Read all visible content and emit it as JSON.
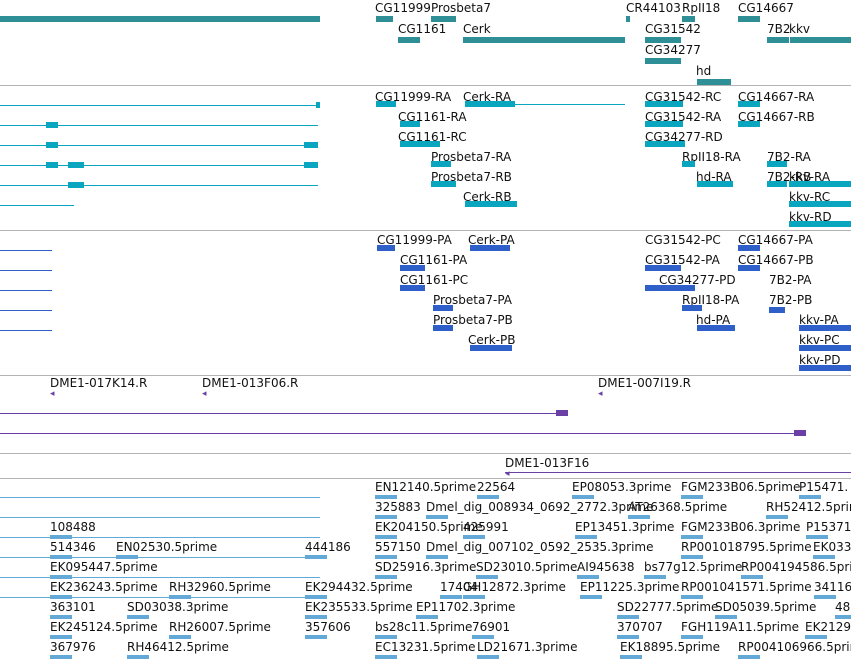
{
  "colors": {
    "gene": "#2e8f97",
    "transcript": "#0aa6bf",
    "protein": "#2f5fc9",
    "clone": "#6b40a6",
    "est": "#63a9d8",
    "separator": "#b4b4b4",
    "text": "#111111"
  },
  "tracks": {
    "genes": [
      {
        "label": "CG11999",
        "dir": "left"
      },
      {
        "label": "Prosbeta7",
        "dir": "left"
      },
      {
        "label": "CG1161",
        "dir": "none"
      },
      {
        "label": "Cerk",
        "dir": "none"
      },
      {
        "label": "CR44103",
        "dir": "none"
      },
      {
        "label": "RpII18",
        "dir": "right"
      },
      {
        "label": "CG31542",
        "dir": "none"
      },
      {
        "label": "CG34277",
        "dir": "none"
      },
      {
        "label": "hd",
        "dir": "none"
      },
      {
        "label": "CG14667",
        "dir": "right"
      },
      {
        "label": "7B2",
        "dir": "none"
      },
      {
        "label": "kkv",
        "dir": "none"
      }
    ],
    "transcripts": [
      {
        "label": "CG11999-RA"
      },
      {
        "label": "Cerk-RA"
      },
      {
        "label": "CG1161-RA"
      },
      {
        "label": "CG1161-RC"
      },
      {
        "label": "Prosbeta7-RA"
      },
      {
        "label": "Prosbeta7-RB"
      },
      {
        "label": "Cerk-RB"
      },
      {
        "label": "CG31542-RC"
      },
      {
        "label": "CG31542-RA"
      },
      {
        "label": "CG34277-RD"
      },
      {
        "label": "RpII18-RA"
      },
      {
        "label": "hd-RA"
      },
      {
        "label": "CG14667-RA"
      },
      {
        "label": "CG14667-RB"
      },
      {
        "label": "7B2-RA"
      },
      {
        "label": "7B2-RB"
      },
      {
        "label": "kkv-RA"
      },
      {
        "label": "kkv-RC"
      },
      {
        "label": "kkv-RD"
      }
    ],
    "proteins": [
      {
        "label": "CG11999-PA"
      },
      {
        "label": "Cerk-PA"
      },
      {
        "label": "CG1161-PA"
      },
      {
        "label": "CG1161-PC"
      },
      {
        "label": "Prosbeta7-PA"
      },
      {
        "label": "Prosbeta7-PB"
      },
      {
        "label": "Cerk-PB"
      },
      {
        "label": "CG31542-PC"
      },
      {
        "label": "CG31542-PA"
      },
      {
        "label": "CG34277-PD"
      },
      {
        "label": "RpII18-PA"
      },
      {
        "label": "hd-PA"
      },
      {
        "label": "CG14667-PA"
      },
      {
        "label": "CG14667-PB"
      },
      {
        "label": "7B2-PA"
      },
      {
        "label": "7B2-PB"
      },
      {
        "label": "kkv-PA"
      },
      {
        "label": "kkv-PC"
      },
      {
        "label": "kkv-PD"
      }
    ],
    "clones": [
      {
        "label": "DME1-017K14.R"
      },
      {
        "label": "DME1-013F06.R"
      },
      {
        "label": "DME1-007I19.R"
      },
      {
        "label": "DME1-013F16"
      }
    ],
    "ests": [
      {
        "label": "EN12140.5prime"
      },
      {
        "label": "22564"
      },
      {
        "label": "EP08053.3prime"
      },
      {
        "label": "FGM233B06.5prime"
      },
      {
        "label": "P15471."
      },
      {
        "label": "325883"
      },
      {
        "label": "Dmel_dig_008934_0692_2772.3prime"
      },
      {
        "label": "AT26368.5prime"
      },
      {
        "label": "RH52412.5prime"
      },
      {
        "label": "108488"
      },
      {
        "label": "EK204150.5prime"
      },
      {
        "label": "425991"
      },
      {
        "label": "EP13451.3prime"
      },
      {
        "label": "FGM233B06.3prime"
      },
      {
        "label": "P15371"
      },
      {
        "label": "514346"
      },
      {
        "label": "EN02530.5prime"
      },
      {
        "label": "444186"
      },
      {
        "label": "557150"
      },
      {
        "label": "Dmel_dig_007102_0592_2535.3prime"
      },
      {
        "label": "RP001018795.5prime"
      },
      {
        "label": "EK033"
      },
      {
        "label": "EK095447.5prime"
      },
      {
        "label": "SD25916.3prime"
      },
      {
        "label": "SD23010.5prime"
      },
      {
        "label": "AI945638"
      },
      {
        "label": "bs77g12.5prime"
      },
      {
        "label": "RP004194586.5prime"
      },
      {
        "label": "EK236243.5prime"
      },
      {
        "label": "RH32960.5prime"
      },
      {
        "label": "EK294432.5prime"
      },
      {
        "label": "17404"
      },
      {
        "label": "GH12872.3prime"
      },
      {
        "label": "EP11225.3prime"
      },
      {
        "label": "RP001041571.5prime"
      },
      {
        "label": "34116"
      },
      {
        "label": "363101"
      },
      {
        "label": "SD03038.3prime"
      },
      {
        "label": "EK235533.5prime"
      },
      {
        "label": "EP11702.3prime"
      },
      {
        "label": "SD22777.5prime"
      },
      {
        "label": "SD05039.5prime"
      },
      {
        "label": "48"
      },
      {
        "label": "EK245124.5prime"
      },
      {
        "label": "RH26007.5prime"
      },
      {
        "label": "357606"
      },
      {
        "label": "bs28c11.5prime"
      },
      {
        "label": "76901"
      },
      {
        "label": "370707"
      },
      {
        "label": "FGH119A11.5prime"
      },
      {
        "label": "EK2129"
      },
      {
        "label": "367976"
      },
      {
        "label": "RH46412.5prime"
      },
      {
        "label": "EC13231.5prime"
      },
      {
        "label": "LD21671.3prime"
      },
      {
        "label": "EK18895.5prime"
      },
      {
        "label": "RP004106966.5prime"
      }
    ]
  }
}
